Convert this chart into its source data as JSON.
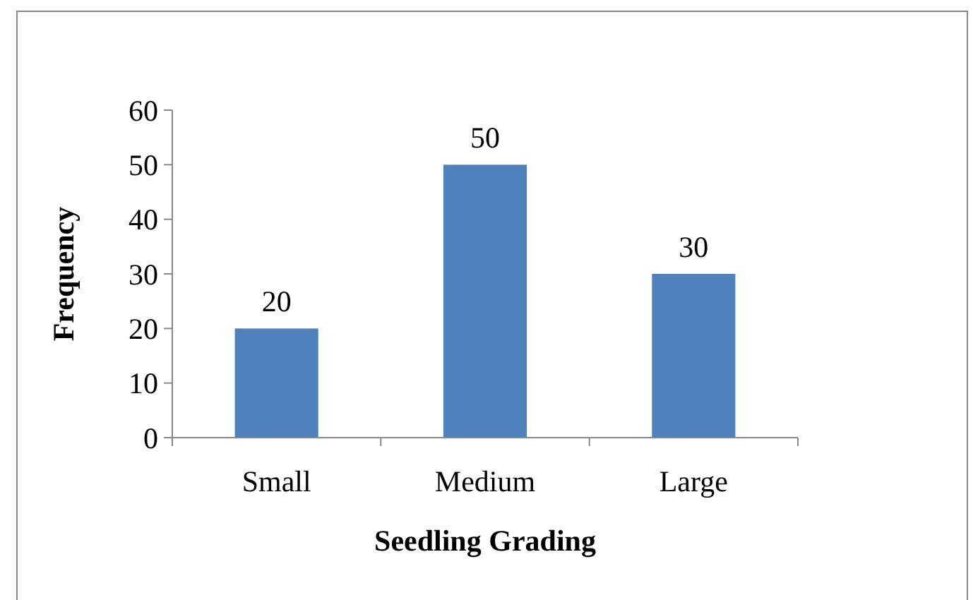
{
  "chart_data": {
    "type": "bar",
    "xlabel": "Seedling Grading",
    "ylabel": "Frequency",
    "categories": [
      "Small",
      "Medium",
      "Large"
    ],
    "values": [
      20,
      50,
      30
    ],
    "color": "#4f81bd",
    "ylim": [
      0,
      60
    ],
    "yticks": [
      0,
      10,
      20,
      30,
      40,
      50,
      60
    ],
    "grid": false,
    "data_labels": true
  }
}
